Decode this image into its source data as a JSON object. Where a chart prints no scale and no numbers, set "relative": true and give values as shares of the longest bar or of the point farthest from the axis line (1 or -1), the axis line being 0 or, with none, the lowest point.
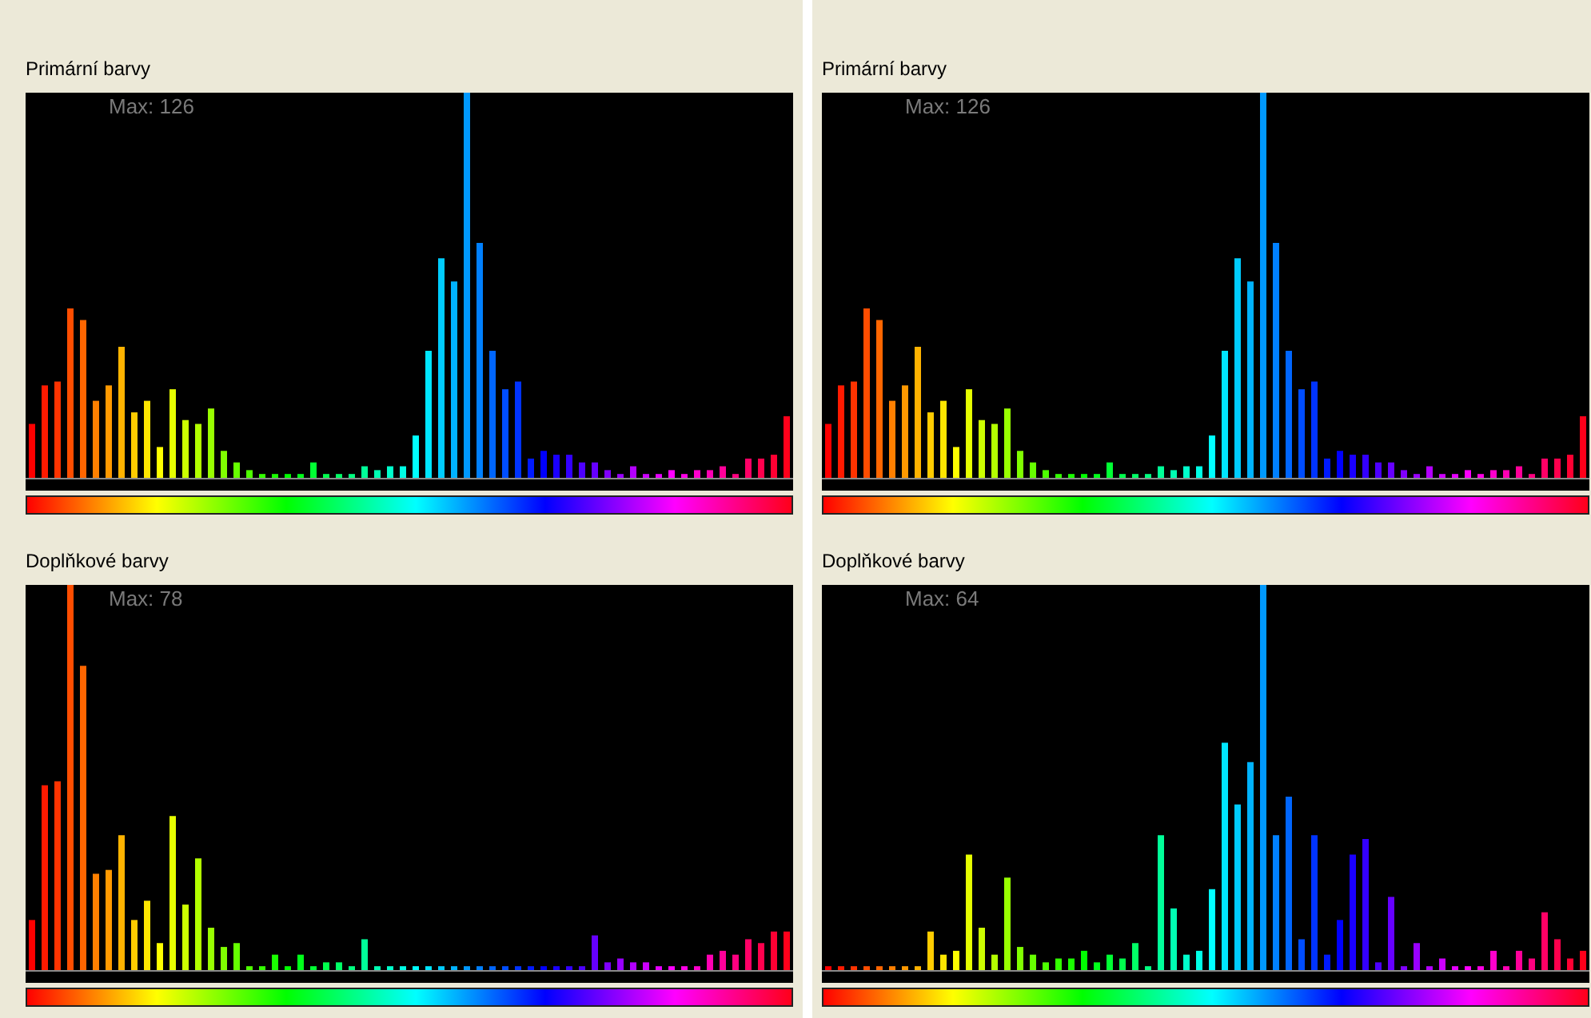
{
  "chart_data": [
    {
      "type": "bar",
      "title": "Primární barvy",
      "annotations": [
        "Max: 126"
      ],
      "relative": true,
      "categories": [
        null,
        null,
        null,
        null,
        null,
        null,
        null,
        null,
        null,
        null,
        null,
        null,
        null,
        null,
        null,
        null,
        null,
        null,
        null,
        null,
        null,
        null,
        null,
        null,
        null,
        null,
        null,
        null,
        null,
        null,
        null,
        null,
        null,
        null,
        null,
        null,
        null,
        null,
        null,
        null,
        null,
        null,
        null,
        null,
        null,
        null,
        null,
        null,
        null,
        null,
        null,
        null,
        null,
        null,
        null,
        null,
        null,
        null,
        null,
        null
      ],
      "values": [
        0.14,
        0.24,
        0.25,
        0.44,
        0.41,
        0.2,
        0.24,
        0.34,
        0.17,
        0.2,
        0.08,
        0.23,
        0.15,
        0.14,
        0.18,
        0.07,
        0.04,
        0.02,
        0.01,
        0.01,
        0.01,
        0.01,
        0.04,
        0.01,
        0.01,
        0.01,
        0.03,
        0.02,
        0.03,
        0.03,
        0.11,
        0.33,
        0.57,
        0.51,
        1.0,
        0.61,
        0.33,
        0.23,
        0.25,
        0.05,
        0.07,
        0.06,
        0.06,
        0.04,
        0.04,
        0.02,
        0.01,
        0.03,
        0.01,
        0.01,
        0.02,
        0.01,
        0.02,
        0.02,
        0.03,
        0.01,
        0.05,
        0.05,
        0.06,
        0.16
      ],
      "colors": [
        "#ff0000",
        "#ff1a00",
        "#ff3300",
        "#ff4d00",
        "#ff6600",
        "#ff8000",
        "#ff9900",
        "#ffb300",
        "#ffcc00",
        "#ffe600",
        "#ffff00",
        "#e6ff00",
        "#ccff00",
        "#b3ff00",
        "#99ff00",
        "#80ff00",
        "#66ff00",
        "#4dff00",
        "#33ff00",
        "#1aff00",
        "#00ff00",
        "#00ff1a",
        "#00ff33",
        "#00ff4d",
        "#00ff66",
        "#00ff80",
        "#00ff99",
        "#00ffb3",
        "#00ffcc",
        "#00ffe6",
        "#00ffff",
        "#00e6ff",
        "#00ccff",
        "#00b3ff",
        "#0099ff",
        "#0080ff",
        "#0066ff",
        "#004dff",
        "#0033ff",
        "#001aff",
        "#0000ff",
        "#1a00ff",
        "#3300ff",
        "#4d00ff",
        "#6600ff",
        "#8000ff",
        "#9900ff",
        "#b300ff",
        "#cc00ff",
        "#e600ff",
        "#ff00ff",
        "#ff00e6",
        "#ff00cc",
        "#ff00b3",
        "#ff0099",
        "#ff0080",
        "#ff0066",
        "#ff004d",
        "#ff0033",
        "#ff001a"
      ]
    },
    {
      "type": "bar",
      "title": "Primární barvy",
      "annotations": [
        "Max: 126"
      ],
      "relative": true,
      "categories": [
        null,
        null,
        null,
        null,
        null,
        null,
        null,
        null,
        null,
        null,
        null,
        null,
        null,
        null,
        null,
        null,
        null,
        null,
        null,
        null,
        null,
        null,
        null,
        null,
        null,
        null,
        null,
        null,
        null,
        null,
        null,
        null,
        null,
        null,
        null,
        null,
        null,
        null,
        null,
        null,
        null,
        null,
        null,
        null,
        null,
        null,
        null,
        null,
        null,
        null,
        null,
        null,
        null,
        null,
        null,
        null,
        null,
        null,
        null,
        null
      ],
      "values": [
        0.14,
        0.24,
        0.25,
        0.44,
        0.41,
        0.2,
        0.24,
        0.34,
        0.17,
        0.2,
        0.08,
        0.23,
        0.15,
        0.14,
        0.18,
        0.07,
        0.04,
        0.02,
        0.01,
        0.01,
        0.01,
        0.01,
        0.04,
        0.01,
        0.01,
        0.01,
        0.03,
        0.02,
        0.03,
        0.03,
        0.11,
        0.33,
        0.57,
        0.51,
        1.0,
        0.61,
        0.33,
        0.23,
        0.25,
        0.05,
        0.07,
        0.06,
        0.06,
        0.04,
        0.04,
        0.02,
        0.01,
        0.03,
        0.01,
        0.01,
        0.02,
        0.01,
        0.02,
        0.02,
        0.03,
        0.01,
        0.05,
        0.05,
        0.06,
        0.16
      ],
      "colors": [
        "#ff0000",
        "#ff1a00",
        "#ff3300",
        "#ff4d00",
        "#ff6600",
        "#ff8000",
        "#ff9900",
        "#ffb300",
        "#ffcc00",
        "#ffe600",
        "#ffff00",
        "#e6ff00",
        "#ccff00",
        "#b3ff00",
        "#99ff00",
        "#80ff00",
        "#66ff00",
        "#4dff00",
        "#33ff00",
        "#1aff00",
        "#00ff00",
        "#00ff1a",
        "#00ff33",
        "#00ff4d",
        "#00ff66",
        "#00ff80",
        "#00ff99",
        "#00ffb3",
        "#00ffcc",
        "#00ffe6",
        "#00ffff",
        "#00e6ff",
        "#00ccff",
        "#00b3ff",
        "#0099ff",
        "#0080ff",
        "#0066ff",
        "#004dff",
        "#0033ff",
        "#001aff",
        "#0000ff",
        "#1a00ff",
        "#3300ff",
        "#4d00ff",
        "#6600ff",
        "#8000ff",
        "#9900ff",
        "#b300ff",
        "#cc00ff",
        "#e600ff",
        "#ff00ff",
        "#ff00e6",
        "#ff00cc",
        "#ff00b3",
        "#ff0099",
        "#ff0080",
        "#ff0066",
        "#ff004d",
        "#ff0033",
        "#ff001a"
      ]
    },
    {
      "type": "bar",
      "title": "Doplňkové barvy",
      "annotations": [
        "Max: 78"
      ],
      "relative": true,
      "categories": [
        null,
        null,
        null,
        null,
        null,
        null,
        null,
        null,
        null,
        null,
        null,
        null,
        null,
        null,
        null,
        null,
        null,
        null,
        null,
        null,
        null,
        null,
        null,
        null,
        null,
        null,
        null,
        null,
        null,
        null,
        null,
        null,
        null,
        null,
        null,
        null,
        null,
        null,
        null,
        null,
        null,
        null,
        null,
        null,
        null,
        null,
        null,
        null,
        null,
        null,
        null,
        null,
        null,
        null,
        null,
        null,
        null,
        null,
        null,
        null
      ],
      "values": [
        0.13,
        0.48,
        0.49,
        1.0,
        0.79,
        0.25,
        0.26,
        0.35,
        0.13,
        0.18,
        0.07,
        0.4,
        0.17,
        0.29,
        0.11,
        0.06,
        0.07,
        0.01,
        0.01,
        0.04,
        0.01,
        0.04,
        0.01,
        0.02,
        0.02,
        0.01,
        0.08,
        0.01,
        0.01,
        0.01,
        0.01,
        0.01,
        0.01,
        0.01,
        0.01,
        0.01,
        0.01,
        0.01,
        0.01,
        0.01,
        0.01,
        0.01,
        0.01,
        0.01,
        0.09,
        0.02,
        0.03,
        0.02,
        0.02,
        0.01,
        0.01,
        0.01,
        0.01,
        0.04,
        0.05,
        0.04,
        0.08,
        0.07,
        0.1,
        0.1
      ],
      "colors": [
        "#ff0000",
        "#ff1a00",
        "#ff3300",
        "#ff4d00",
        "#ff6600",
        "#ff8000",
        "#ff9900",
        "#ffb300",
        "#ffcc00",
        "#ffe600",
        "#ffff00",
        "#e6ff00",
        "#ccff00",
        "#b3ff00",
        "#99ff00",
        "#80ff00",
        "#66ff00",
        "#4dff00",
        "#33ff00",
        "#1aff00",
        "#00ff00",
        "#00ff1a",
        "#00ff33",
        "#00ff4d",
        "#00ff66",
        "#00ff80",
        "#00ff99",
        "#00ffb3",
        "#00ffcc",
        "#00ffe6",
        "#00ffff",
        "#00e6ff",
        "#00ccff",
        "#00b3ff",
        "#0099ff",
        "#0080ff",
        "#0066ff",
        "#004dff",
        "#0033ff",
        "#001aff",
        "#0000ff",
        "#1a00ff",
        "#3300ff",
        "#4d00ff",
        "#6600ff",
        "#8000ff",
        "#9900ff",
        "#b300ff",
        "#cc00ff",
        "#e600ff",
        "#ff00ff",
        "#ff00e6",
        "#ff00cc",
        "#ff00b3",
        "#ff0099",
        "#ff0080",
        "#ff0066",
        "#ff004d",
        "#ff0033",
        "#ff001a"
      ]
    },
    {
      "type": "bar",
      "title": "Doplňkové barvy",
      "annotations": [
        "Max: 64"
      ],
      "relative": true,
      "categories": [
        null,
        null,
        null,
        null,
        null,
        null,
        null,
        null,
        null,
        null,
        null,
        null,
        null,
        null,
        null,
        null,
        null,
        null,
        null,
        null,
        null,
        null,
        null,
        null,
        null,
        null,
        null,
        null,
        null,
        null,
        null,
        null,
        null,
        null,
        null,
        null,
        null,
        null,
        null,
        null,
        null,
        null,
        null,
        null,
        null,
        null,
        null,
        null,
        null,
        null,
        null,
        null,
        null,
        null,
        null,
        null,
        null,
        null,
        null,
        null
      ],
      "values": [
        0.01,
        0.01,
        0.01,
        0.01,
        0.01,
        0.01,
        0.01,
        0.01,
        0.1,
        0.04,
        0.05,
        0.3,
        0.11,
        0.04,
        0.24,
        0.06,
        0.04,
        0.02,
        0.03,
        0.03,
        0.05,
        0.02,
        0.04,
        0.03,
        0.07,
        0.01,
        0.35,
        0.16,
        0.04,
        0.05,
        0.21,
        0.59,
        0.43,
        0.54,
        1.0,
        0.35,
        0.45,
        0.08,
        0.35,
        0.04,
        0.13,
        0.3,
        0.34,
        0.02,
        0.19,
        0.01,
        0.07,
        0.01,
        0.03,
        0.01,
        0.01,
        0.01,
        0.05,
        0.01,
        0.05,
        0.03,
        0.15,
        0.08,
        0.03,
        0.05
      ],
      "colors": [
        "#ff0000",
        "#ff1a00",
        "#ff3300",
        "#ff4d00",
        "#ff6600",
        "#ff8000",
        "#ff9900",
        "#ffb300",
        "#ffcc00",
        "#ffe600",
        "#ffff00",
        "#e6ff00",
        "#ccff00",
        "#b3ff00",
        "#99ff00",
        "#80ff00",
        "#66ff00",
        "#4dff00",
        "#33ff00",
        "#1aff00",
        "#00ff00",
        "#00ff1a",
        "#00ff33",
        "#00ff4d",
        "#00ff66",
        "#00ff80",
        "#00ff99",
        "#00ffb3",
        "#00ffcc",
        "#00ffe6",
        "#00ffff",
        "#00e6ff",
        "#00ccff",
        "#00b3ff",
        "#0099ff",
        "#0080ff",
        "#0066ff",
        "#004dff",
        "#0033ff",
        "#001aff",
        "#0000ff",
        "#1a00ff",
        "#3300ff",
        "#4d00ff",
        "#6600ff",
        "#8000ff",
        "#9900ff",
        "#b300ff",
        "#cc00ff",
        "#e600ff",
        "#ff00ff",
        "#ff00e6",
        "#ff00cc",
        "#ff00b3",
        "#ff0099",
        "#ff0080",
        "#ff0066",
        "#ff004d",
        "#ff0033",
        "#ff001a"
      ]
    }
  ]
}
